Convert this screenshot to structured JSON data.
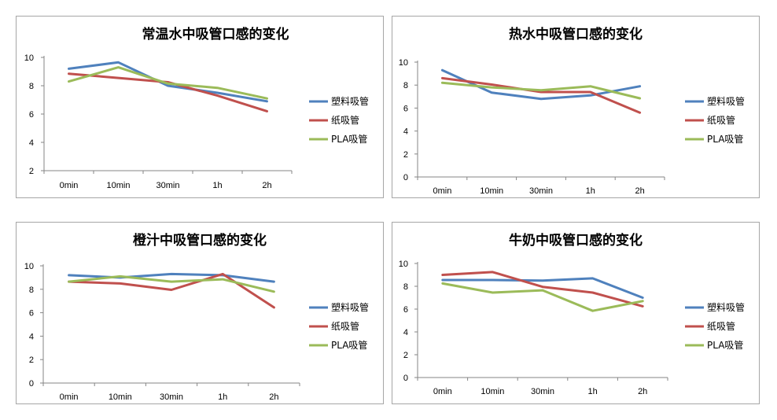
{
  "chart_data": [
    {
      "type": "line",
      "title": "常温水中吸管口感的变化",
      "categories": [
        "0min",
        "10min",
        "30min",
        "1h",
        "2h"
      ],
      "ylim": [
        2,
        10
      ],
      "yticks": [
        2,
        4,
        6,
        8,
        10
      ],
      "legend_position": "right",
      "series": [
        {
          "name": "塑料吸管",
          "color": "#4f81bd",
          "values": [
            9.2,
            9.65,
            8.0,
            7.5,
            6.9
          ]
        },
        {
          "name": "纸吸管",
          "color": "#c0504d",
          "values": [
            8.85,
            8.55,
            8.25,
            7.3,
            6.2
          ]
        },
        {
          "name": "PLA吸管",
          "color": "#9bbb59",
          "values": [
            8.3,
            9.3,
            8.15,
            7.85,
            7.1
          ]
        }
      ]
    },
    {
      "type": "line",
      "title": "热水中吸管口感的变化",
      "categories": [
        "0min",
        "10min",
        "30min",
        "1h",
        "2h"
      ],
      "ylim": [
        0,
        10
      ],
      "yticks": [
        0,
        2,
        4,
        6,
        8,
        10
      ],
      "legend_position": "right",
      "series": [
        {
          "name": "塑料吸管",
          "color": "#4f81bd",
          "values": [
            9.3,
            7.35,
            6.8,
            7.1,
            7.9
          ]
        },
        {
          "name": "纸吸管",
          "color": "#c0504d",
          "values": [
            8.6,
            8.05,
            7.4,
            7.4,
            5.6
          ]
        },
        {
          "name": "PLA吸管",
          "color": "#9bbb59",
          "values": [
            8.2,
            7.8,
            7.55,
            7.9,
            6.85
          ]
        }
      ]
    },
    {
      "type": "line",
      "title": "橙汁中吸管口感的变化",
      "categories": [
        "0min",
        "10min",
        "30min",
        "1h",
        "2h"
      ],
      "ylim": [
        0,
        10
      ],
      "yticks": [
        0,
        2,
        4,
        6,
        8,
        10
      ],
      "legend_position": "right",
      "series": [
        {
          "name": "塑料吸管",
          "color": "#4f81bd",
          "values": [
            9.2,
            9.0,
            9.3,
            9.2,
            8.65
          ]
        },
        {
          "name": "纸吸管",
          "color": "#c0504d",
          "values": [
            8.65,
            8.5,
            7.95,
            9.3,
            6.45
          ]
        },
        {
          "name": "PLA吸管",
          "color": "#9bbb59",
          "values": [
            8.65,
            9.1,
            8.65,
            8.85,
            7.8
          ]
        }
      ]
    },
    {
      "type": "line",
      "title": "牛奶中吸管口感的变化",
      "categories": [
        "0min",
        "10min",
        "30min",
        "1h",
        "2h"
      ],
      "ylim": [
        0,
        10
      ],
      "yticks": [
        0,
        2,
        4,
        6,
        8,
        10
      ],
      "legend_position": "right",
      "series": [
        {
          "name": "塑料吸管",
          "color": "#4f81bd",
          "values": [
            8.55,
            8.55,
            8.5,
            8.7,
            7.0
          ]
        },
        {
          "name": "纸吸管",
          "color": "#c0504d",
          "values": [
            9.0,
            9.25,
            7.95,
            7.45,
            6.25
          ]
        },
        {
          "name": "PLA吸管",
          "color": "#9bbb59",
          "values": [
            8.25,
            7.45,
            7.65,
            5.85,
            6.7
          ]
        }
      ]
    }
  ]
}
